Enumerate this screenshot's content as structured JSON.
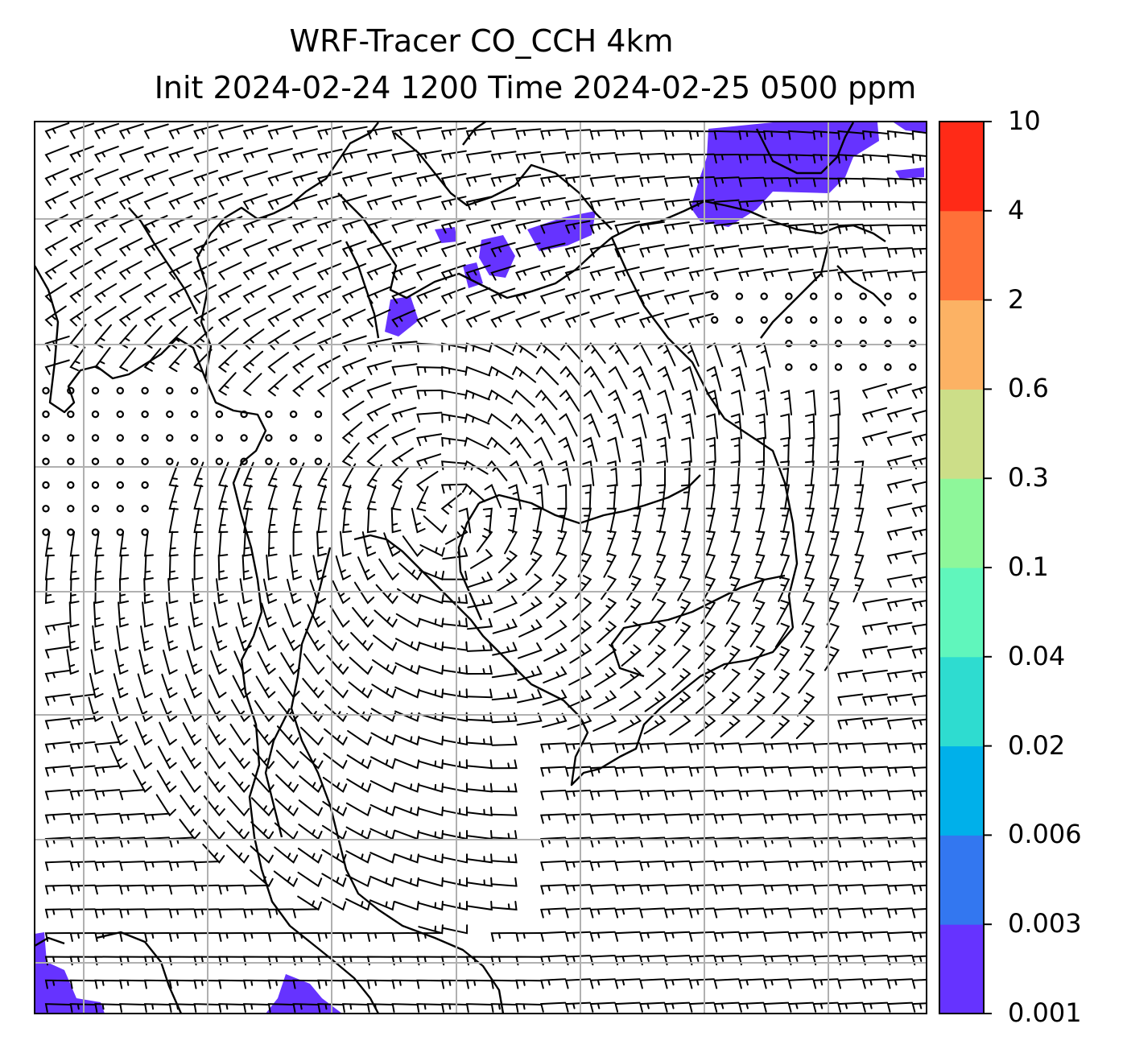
{
  "title": {
    "line1": "WRF-Tracer CO_CCH 4km",
    "line2": "Init 2024-02-24 1200 Time 2024-02-25 0500 ppm"
  },
  "colorbar": {
    "levels": [
      "0.001",
      "0.003",
      "0.006",
      "0.02",
      "0.04",
      "0.1",
      "0.3",
      "0.6",
      "2",
      "4",
      "10"
    ],
    "colors": [
      "#6633ff",
      "#3377f0",
      "#00b0ea",
      "#2edcd0",
      "#60f6bc",
      "#8ef79a",
      "#ccde88",
      "#fcb264",
      "#ff7038",
      "#ff2a17"
    ]
  },
  "map": {
    "tracer_fill_color": "#6633ff",
    "coastline_color": "#000000",
    "gridline_color": "#b0b0b0",
    "wind_barb_color": "#000000"
  }
}
